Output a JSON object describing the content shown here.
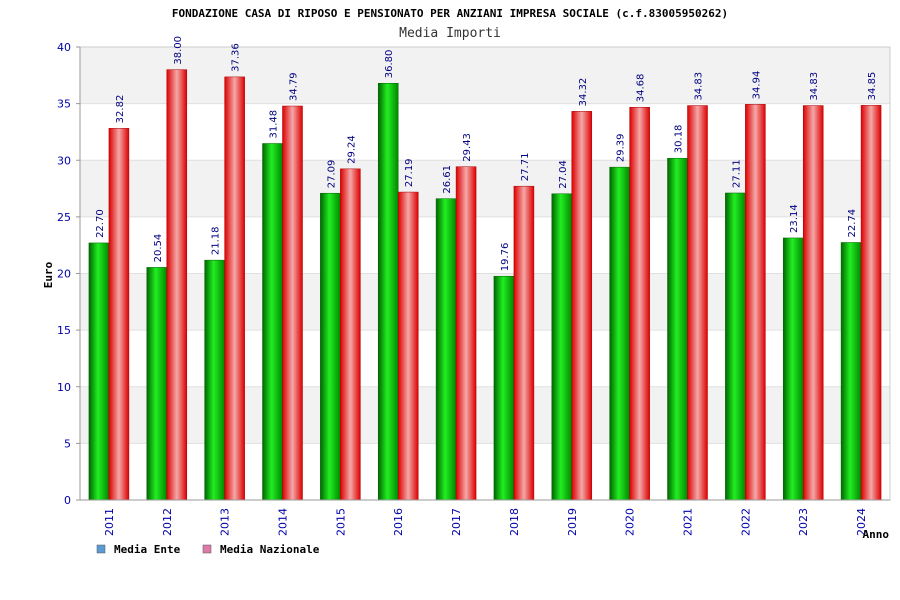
{
  "chart_data": {
    "type": "bar",
    "title": "FONDAZIONE CASA DI RIPOSO E PENSIONATO PER ANZIANI IMPRESA SOCIALE (c.f.83005950262)",
    "subtitle": "Media Importi",
    "xlabel": "Anno",
    "ylabel": "Euro",
    "ylim": [
      0,
      40
    ],
    "yticks": [
      0,
      5,
      10,
      15,
      20,
      25,
      30,
      35,
      40
    ],
    "grid": true,
    "legend_position": "bottom-left",
    "categories": [
      "2011",
      "2012",
      "2013",
      "2014",
      "2015",
      "2016",
      "2017",
      "2018",
      "2019",
      "2020",
      "2021",
      "2022",
      "2023",
      "2024"
    ],
    "series": [
      {
        "name": "Media Ente",
        "color": "#00cc00",
        "legend_color": "#5b9bd5",
        "values": [
          22.7,
          20.54,
          21.18,
          31.48,
          27.09,
          36.8,
          26.61,
          19.76,
          27.04,
          29.39,
          30.18,
          27.11,
          23.14,
          22.74
        ],
        "labels": [
          "22.70",
          "20.54",
          "21.18",
          "31.48",
          "27.09",
          "36.80",
          "26.61",
          "19.76",
          "27.04",
          "29.39",
          "30.18",
          "27.11",
          "23.14",
          "22.74"
        ]
      },
      {
        "name": "Media Nazionale",
        "color": "#ee1111",
        "legend_color": "#dd7aa7",
        "values": [
          32.82,
          38.0,
          37.36,
          34.79,
          29.24,
          27.19,
          29.43,
          27.71,
          34.32,
          34.68,
          34.83,
          34.94,
          34.83,
          34.85
        ],
        "labels": [
          "32.82",
          "38.00",
          "37.36",
          "34.79",
          "29.24",
          "27.19",
          "29.43",
          "27.71",
          "34.32",
          "34.68",
          "34.83",
          "34.94",
          "34.83",
          "34.85"
        ]
      }
    ]
  }
}
